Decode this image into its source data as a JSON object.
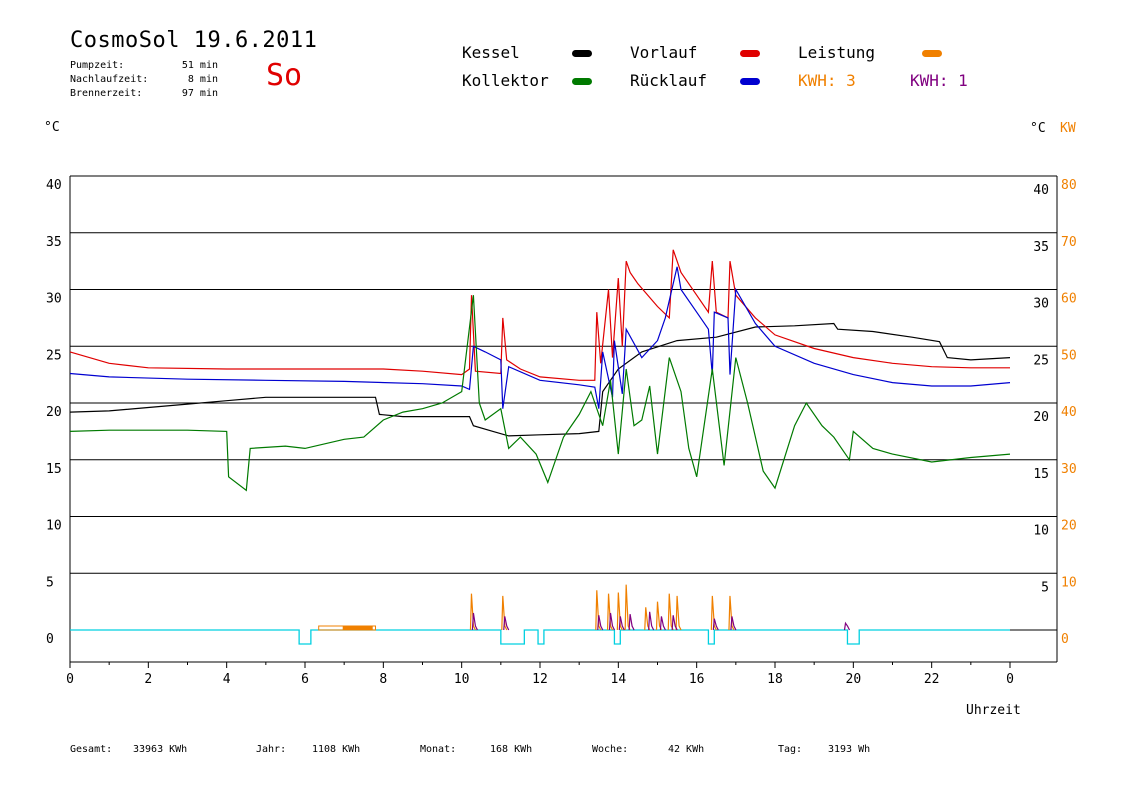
{
  "header": {
    "title": "CosmoSol 19.6.2011",
    "day": "So",
    "stats": [
      {
        "label": "Pumpzeit:",
        "value": "51 min"
      },
      {
        "label": "Nachlaufzeit:",
        "value": "8 min"
      },
      {
        "label": "Brennerzeit:",
        "value": "97 min"
      }
    ]
  },
  "legend": {
    "kessel": {
      "label": "Kessel",
      "color": "#000000"
    },
    "kollektor": {
      "label": "Kollektor",
      "color": "#007a00"
    },
    "vorlauf": {
      "label": "Vorlauf",
      "color": "#e00000"
    },
    "ruecklauf": {
      "label": "Rücklauf",
      "color": "#0000d0"
    },
    "leistung": {
      "label": "Leistung",
      "color": "#f08000"
    },
    "kwh1": {
      "label": "KWH: 3",
      "color": "#f08000"
    },
    "kwh2": {
      "label": "KWH: 1",
      "color": "#800080"
    }
  },
  "units": {
    "left": "°C",
    "right_c": "°C",
    "right_kw": "KW"
  },
  "footer": [
    {
      "label": "Gesamt:",
      "value": "33963 KWh"
    },
    {
      "label": "Jahr:",
      "value": "1108 KWh"
    },
    {
      "label": "Monat:",
      "value": "168 KWh"
    },
    {
      "label": "Woche:",
      "value": "42 KWh"
    },
    {
      "label": "Tag:",
      "value": "3193 Wh"
    }
  ],
  "chart_data": {
    "type": "line",
    "xlabel": "Uhrzeit",
    "x_ticks": [
      "0",
      "2",
      "4",
      "6",
      "8",
      "10",
      "12",
      "14",
      "16",
      "18",
      "20",
      "22",
      "0"
    ],
    "xlim": [
      0,
      25
    ],
    "ylim_left": [
      0,
      40
    ],
    "left_ticks": [
      "0",
      "5",
      "10",
      "15",
      "20",
      "25",
      "30",
      "35",
      "40"
    ],
    "right_ticks_c": [
      "5",
      "10",
      "15",
      "20",
      "25",
      "30",
      "35",
      "40"
    ],
    "right_ticks_kw": [
      "0",
      "10",
      "20",
      "30",
      "40",
      "50",
      "60",
      "70",
      "80"
    ],
    "grid": "horizontal",
    "series": [
      {
        "name": "Kessel",
        "color": "#000000",
        "points": [
          [
            0,
            19.2
          ],
          [
            1,
            19.3
          ],
          [
            2,
            19.6
          ],
          [
            3,
            19.9
          ],
          [
            4,
            20.2
          ],
          [
            5,
            20.5
          ],
          [
            7.8,
            20.5
          ],
          [
            7.9,
            19.0
          ],
          [
            8.5,
            18.8
          ],
          [
            10,
            18.8
          ],
          [
            10.2,
            18.8
          ],
          [
            10.3,
            18.0
          ],
          [
            10.8,
            17.5
          ],
          [
            11.2,
            17.1
          ],
          [
            12,
            17.2
          ],
          [
            13,
            17.3
          ],
          [
            13.5,
            17.5
          ],
          [
            13.6,
            21
          ],
          [
            14.0,
            23
          ],
          [
            14.6,
            24.5
          ],
          [
            15.5,
            25.5
          ],
          [
            16.5,
            25.8
          ],
          [
            17.5,
            26.7
          ],
          [
            18.5,
            26.8
          ],
          [
            19.5,
            27.0
          ],
          [
            19.6,
            26.5
          ],
          [
            20.5,
            26.3
          ],
          [
            21.5,
            25.8
          ],
          [
            22.2,
            25.4
          ],
          [
            22.4,
            24
          ],
          [
            23,
            23.8
          ],
          [
            24,
            24.0
          ]
        ]
      },
      {
        "name": "Vorlauf",
        "color": "#e00000",
        "points": [
          [
            0,
            24.5
          ],
          [
            1,
            23.5
          ],
          [
            2,
            23.1
          ],
          [
            4,
            23.0
          ],
          [
            6,
            23.0
          ],
          [
            8,
            23.0
          ],
          [
            9,
            22.8
          ],
          [
            10,
            22.5
          ],
          [
            10.2,
            23
          ],
          [
            10.25,
            29.5
          ],
          [
            10.35,
            22.8
          ],
          [
            11,
            22.6
          ],
          [
            11.05,
            27.5
          ],
          [
            11.15,
            23.8
          ],
          [
            11.5,
            23.0
          ],
          [
            12,
            22.3
          ],
          [
            13,
            22.0
          ],
          [
            13.4,
            22.0
          ],
          [
            13.45,
            28.0
          ],
          [
            13.55,
            23.5
          ],
          [
            13.75,
            30.0
          ],
          [
            13.85,
            24
          ],
          [
            14.0,
            31.0
          ],
          [
            14.1,
            25
          ],
          [
            14.2,
            32.5
          ],
          [
            14.3,
            31.5
          ],
          [
            14.5,
            30.5
          ],
          [
            15,
            28.5
          ],
          [
            15.3,
            27.5
          ],
          [
            15.4,
            33.5
          ],
          [
            15.6,
            31.5
          ],
          [
            16,
            29.5
          ],
          [
            16.3,
            28.0
          ],
          [
            16.4,
            32.5
          ],
          [
            16.5,
            28.0
          ],
          [
            16.8,
            27.5
          ],
          [
            16.85,
            32.5
          ],
          [
            17,
            29.5
          ],
          [
            17.5,
            27.5
          ],
          [
            18,
            26.0
          ],
          [
            19,
            24.8
          ],
          [
            20,
            24.0
          ],
          [
            21,
            23.5
          ],
          [
            22,
            23.2
          ],
          [
            23,
            23.1
          ],
          [
            24,
            23.1
          ]
        ]
      },
      {
        "name": "Rücklauf",
        "color": "#0000d0",
        "points": [
          [
            0,
            22.6
          ],
          [
            1,
            22.3
          ],
          [
            3,
            22.1
          ],
          [
            5,
            22.0
          ],
          [
            7,
            21.9
          ],
          [
            9,
            21.7
          ],
          [
            10,
            21.5
          ],
          [
            10.2,
            21.2
          ],
          [
            10.3,
            25.0
          ],
          [
            10.6,
            24.5
          ],
          [
            11,
            23.8
          ],
          [
            11.05,
            19.5
          ],
          [
            11.2,
            23.2
          ],
          [
            12,
            22.0
          ],
          [
            13,
            21.6
          ],
          [
            13.4,
            21.4
          ],
          [
            13.5,
            19.5
          ],
          [
            13.6,
            24.5
          ],
          [
            13.85,
            20.5
          ],
          [
            13.9,
            25.5
          ],
          [
            14.1,
            20.8
          ],
          [
            14.2,
            26.5
          ],
          [
            14.6,
            24
          ],
          [
            15,
            25.5
          ],
          [
            15.2,
            27.5
          ],
          [
            15.5,
            32
          ],
          [
            15.6,
            30
          ],
          [
            16,
            28
          ],
          [
            16.3,
            26.5
          ],
          [
            16.4,
            22.5
          ],
          [
            16.45,
            28
          ],
          [
            16.8,
            27.5
          ],
          [
            16.85,
            22.5
          ],
          [
            17,
            30
          ],
          [
            17.5,
            27
          ],
          [
            18,
            25
          ],
          [
            19,
            23.5
          ],
          [
            20,
            22.5
          ],
          [
            21,
            21.8
          ],
          [
            22,
            21.5
          ],
          [
            23,
            21.5
          ],
          [
            24,
            21.8
          ]
        ]
      },
      {
        "name": "Kollektor",
        "color": "#007a00",
        "points": [
          [
            0,
            17.5
          ],
          [
            1,
            17.6
          ],
          [
            2,
            17.6
          ],
          [
            3,
            17.6
          ],
          [
            4,
            17.5
          ],
          [
            4.05,
            13.5
          ],
          [
            4.5,
            12.3
          ],
          [
            4.6,
            16.0
          ],
          [
            5.5,
            16.2
          ],
          [
            6,
            16.0
          ],
          [
            7,
            16.8
          ],
          [
            7.5,
            17.0
          ],
          [
            8,
            18.5
          ],
          [
            8.5,
            19.2
          ],
          [
            9,
            19.5
          ],
          [
            9.5,
            20.0
          ],
          [
            10,
            21.0
          ],
          [
            10.3,
            29.5
          ],
          [
            10.45,
            20.0
          ],
          [
            10.6,
            18.5
          ],
          [
            11,
            19.5
          ],
          [
            11.2,
            16.0
          ],
          [
            11.5,
            17.0
          ],
          [
            11.9,
            15.5
          ],
          [
            12.2,
            13.0
          ],
          [
            12.6,
            17.0
          ],
          [
            13,
            19.0
          ],
          [
            13.3,
            21.0
          ],
          [
            13.6,
            18.0
          ],
          [
            13.8,
            22.0
          ],
          [
            14,
            15.5
          ],
          [
            14.2,
            23.0
          ],
          [
            14.4,
            18.0
          ],
          [
            14.6,
            18.5
          ],
          [
            14.8,
            21.5
          ],
          [
            15.0,
            15.5
          ],
          [
            15.3,
            24.0
          ],
          [
            15.6,
            21.0
          ],
          [
            15.8,
            16.0
          ],
          [
            16.0,
            13.5
          ],
          [
            16.4,
            23.0
          ],
          [
            16.7,
            14.5
          ],
          [
            17.0,
            24.0
          ],
          [
            17.3,
            20.0
          ],
          [
            17.7,
            14.0
          ],
          [
            18.0,
            12.5
          ],
          [
            18.5,
            18.0
          ],
          [
            18.8,
            20.0
          ],
          [
            19.2,
            18.0
          ],
          [
            19.5,
            17.0
          ],
          [
            19.9,
            15.0
          ],
          [
            20.0,
            17.5
          ],
          [
            20.5,
            16.0
          ],
          [
            21,
            15.5
          ],
          [
            22,
            14.8
          ],
          [
            23,
            15.2
          ],
          [
            24,
            15.5
          ]
        ]
      }
    ],
    "power_series": [
      {
        "name": "Leistung",
        "color": "#f08000",
        "spikes": [
          [
            10.25,
            3.2
          ],
          [
            11.05,
            3.0
          ],
          [
            13.45,
            3.5
          ],
          [
            13.75,
            3.2
          ],
          [
            14.0,
            3.3
          ],
          [
            14.2,
            4.0
          ],
          [
            14.7,
            2.0
          ],
          [
            15.0,
            2.5
          ],
          [
            15.3,
            3.2
          ],
          [
            15.5,
            3.0
          ],
          [
            16.4,
            3.0
          ],
          [
            16.85,
            3.0
          ]
        ]
      },
      {
        "name": "KWH",
        "color": "#800080",
        "spikes": [
          [
            10.3,
            1.5
          ],
          [
            11.1,
            1.2
          ],
          [
            13.5,
            1.3
          ],
          [
            13.8,
            1.5
          ],
          [
            14.05,
            1.2
          ],
          [
            14.3,
            1.4
          ],
          [
            14.8,
            1.6
          ],
          [
            15.1,
            1.2
          ],
          [
            15.4,
            1.3
          ],
          [
            16.45,
            1.0
          ],
          [
            16.9,
            1.2
          ],
          [
            19.8,
            0.6
          ]
        ]
      }
    ],
    "pump_runs": [
      [
        5.85,
        6.15
      ],
      [
        11.0,
        11.6
      ],
      [
        11.95,
        12.1
      ],
      [
        13.9,
        14.05
      ],
      [
        16.3,
        16.45
      ],
      [
        19.85,
        20.15
      ]
    ],
    "burner_run": [
      6.35,
      7.8
    ]
  }
}
